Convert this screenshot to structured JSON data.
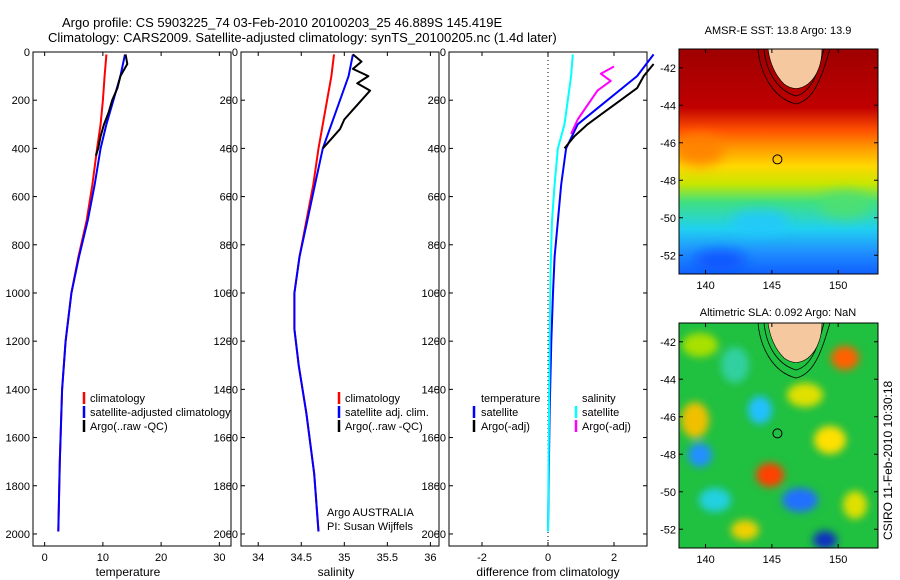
{
  "header": {
    "line1": "Argo profile: CS 5903225_74 03-Feb-2010 20100203_25 46.889S 145.419E",
    "line2": "Climatology: CARS2009. Satellite-adjusted climatology: synTS_20100205.nc (1.4d later)"
  },
  "colors": {
    "climatology": "#ff0000",
    "satellite": "#0000ff",
    "argo": "#000000",
    "salinity_satellite": "#00ffff",
    "salinity_argo": "#ff00ff",
    "land": "#f5c8a0"
  },
  "footer": "CSIRO 11-Feb-2010 10:30:18",
  "chart_data": [
    {
      "type": "line",
      "xlabel": "temperature",
      "xlim": [
        -2,
        32
      ],
      "ylim": [
        0,
        2050
      ],
      "xticks": [
        0,
        10,
        20,
        30
      ],
      "yticks": [
        0,
        200,
        400,
        600,
        800,
        1000,
        1200,
        1400,
        1600,
        1800,
        2000
      ],
      "legend": [
        "climatology",
        "satellite-adjusted climatology",
        "Argo(..raw -QC)"
      ],
      "series": [
        {
          "name": "climatology",
          "color": "#ff0000",
          "x": [
            10.6,
            10.3,
            10.0,
            9.6,
            9.0,
            8.2,
            7.2,
            5.8,
            4.6,
            3.6,
            3.0,
            2.6,
            2.35
          ],
          "y": [
            10,
            100,
            200,
            300,
            400,
            550,
            700,
            850,
            1000,
            1200,
            1400,
            1700,
            1990
          ]
        },
        {
          "name": "satellite-adjusted climatology",
          "color": "#0000ff",
          "x": [
            13.8,
            13.0,
            11.8,
            10.6,
            9.6,
            8.6,
            7.4,
            5.9,
            4.6,
            3.6,
            3.0,
            2.6,
            2.35
          ],
          "y": [
            10,
            100,
            200,
            300,
            400,
            550,
            700,
            850,
            1000,
            1200,
            1400,
            1700,
            1990
          ]
        },
        {
          "name": "Argo(..raw -QC)",
          "color": "#000000",
          "x": [
            13.9,
            14.2,
            13.0,
            12.5,
            11.6,
            11.0,
            10.2,
            9.6,
            9.2,
            8.8
          ],
          "y": [
            10,
            50,
            100,
            150,
            200,
            250,
            300,
            350,
            400,
            430
          ]
        }
      ]
    },
    {
      "type": "line",
      "xlabel": "salinity",
      "xlim": [
        33.8,
        36.1
      ],
      "ylim": [
        0,
        2050
      ],
      "xticks": [
        "34",
        "34.5",
        "35",
        "35.5",
        "36"
      ],
      "yticks": [
        0,
        200,
        400,
        600,
        800,
        1000,
        1200,
        1400,
        1600,
        1800,
        2000
      ],
      "legend": [
        "climatology",
        "satellite adj. clim.",
        "Argo(..raw -QC)"
      ],
      "annotation": [
        "Argo AUSTRALIA",
        "PI: Susan Wijffels"
      ],
      "series": [
        {
          "name": "climatology",
          "color": "#ff0000",
          "x": [
            34.88,
            34.85,
            34.8,
            34.75,
            34.7,
            34.64,
            34.56,
            34.48,
            34.42,
            34.42,
            34.47,
            34.56,
            34.65,
            34.7
          ],
          "y": [
            10,
            100,
            200,
            300,
            400,
            550,
            700,
            850,
            1000,
            1150,
            1300,
            1500,
            1750,
            1990
          ]
        },
        {
          "name": "satellite adj. clim.",
          "color": "#0000ff",
          "x": [
            35.1,
            35.05,
            34.95,
            34.85,
            34.75,
            34.66,
            34.57,
            34.48,
            34.42,
            34.42,
            34.47,
            34.56,
            34.65,
            34.7
          ],
          "y": [
            10,
            100,
            200,
            300,
            400,
            550,
            700,
            850,
            1000,
            1150,
            1300,
            1500,
            1750,
            1990
          ]
        },
        {
          "name": "Argo(..raw -QC)",
          "color": "#000000",
          "x": [
            35.1,
            35.2,
            35.1,
            35.28,
            35.15,
            35.3,
            35.2,
            35.1,
            35.0,
            34.95,
            34.85,
            34.75
          ],
          "y": [
            10,
            40,
            70,
            100,
            130,
            160,
            200,
            240,
            280,
            320,
            360,
            400
          ]
        }
      ]
    },
    {
      "type": "line",
      "xlabel": "difference from climatology",
      "xlim": [
        -3,
        3
      ],
      "ylim": [
        0,
        2050
      ],
      "xticks": [
        -2,
        0,
        2
      ],
      "yticks": [
        0,
        200,
        400,
        600,
        800,
        1000,
        1200,
        1400,
        1600,
        1800,
        2000
      ],
      "legend_left": [
        "temperature",
        "satellite",
        "Argo(-adj)"
      ],
      "legend_right": [
        "salinity",
        "satellite",
        "Argo(-adj)"
      ],
      "series": [
        {
          "name": "temperature satellite",
          "color": "#0000ff",
          "x": [
            3.2,
            2.7,
            1.8,
            0.9,
            0.55,
            0.4,
            0.3,
            0.2,
            0.15,
            0.1,
            0.05,
            0.0
          ],
          "y": [
            10,
            100,
            200,
            300,
            400,
            550,
            700,
            850,
            1000,
            1200,
            1500,
            1990
          ]
        },
        {
          "name": "temperature Argo(-adj)",
          "color": "#000000",
          "x": [
            3.2,
            2.9,
            2.7,
            2.2,
            1.7,
            1.2,
            0.8,
            0.5
          ],
          "y": [
            50,
            100,
            150,
            200,
            250,
            300,
            350,
            400
          ]
        },
        {
          "name": "salinity satellite",
          "color": "#00ffff",
          "x": [
            0.75,
            0.7,
            0.6,
            0.5,
            0.3,
            0.2,
            0.12,
            0.08,
            0.05,
            0.03,
            0.0
          ],
          "y": [
            10,
            100,
            200,
            300,
            400,
            550,
            700,
            900,
            1200,
            1500,
            1990
          ]
        },
        {
          "name": "salinity Argo(-adj)",
          "color": "#ff00ff",
          "x": [
            2.0,
            1.6,
            1.9,
            1.5,
            1.2,
            0.9,
            0.7
          ],
          "y": [
            60,
            90,
            120,
            160,
            220,
            280,
            340
          ]
        }
      ]
    },
    {
      "type": "heatmap",
      "title": "AMSR-E SST: 13.8 Argo: 13.9",
      "xlim": [
        138,
        153
      ],
      "ylim": [
        -53,
        -41
      ],
      "xticks": [
        140,
        145,
        150
      ],
      "yticks": [
        -42,
        -44,
        -46,
        -48,
        -50,
        -52
      ],
      "marker": {
        "lon": 145.419,
        "lat": -46.889
      }
    },
    {
      "type": "heatmap",
      "title": "Altimetric SLA: 0.092 Argo: NaN",
      "xlim": [
        138,
        153
      ],
      "ylim": [
        -53,
        -41
      ],
      "xticks": [
        140,
        145,
        150
      ],
      "yticks": [
        -42,
        -44,
        -46,
        -48,
        -50,
        -52
      ],
      "marker": {
        "lon": 145.419,
        "lat": -46.889
      }
    }
  ]
}
